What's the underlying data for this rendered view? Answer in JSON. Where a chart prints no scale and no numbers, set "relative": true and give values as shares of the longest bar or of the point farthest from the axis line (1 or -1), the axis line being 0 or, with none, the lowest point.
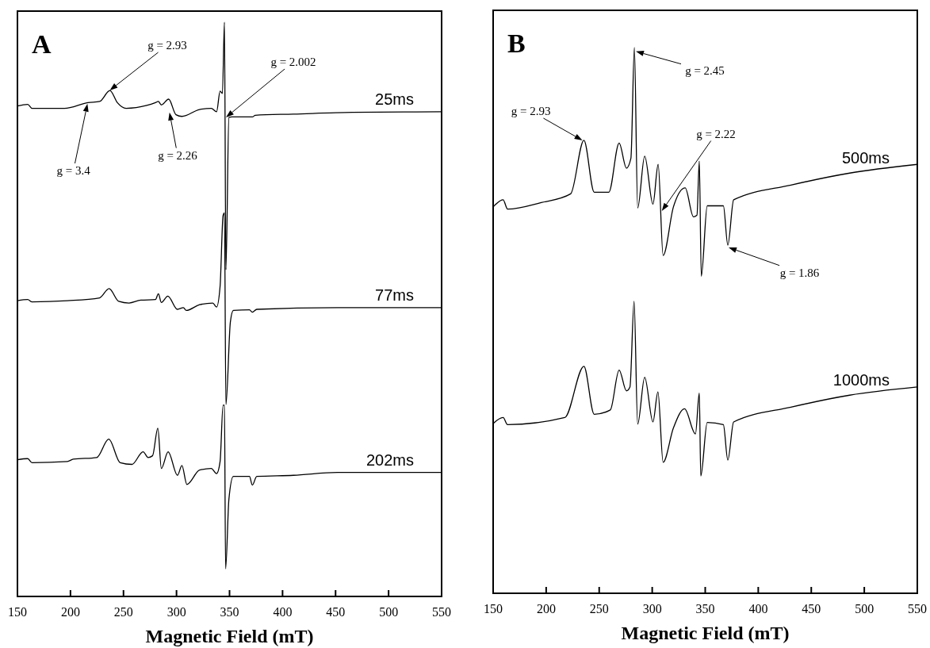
{
  "chart_data": [
    {
      "type": "line",
      "relative": true,
      "xlabel": "Magnetic Field (mT)",
      "xlim": [
        150,
        550
      ],
      "xticks": [
        150,
        200,
        250,
        300,
        350,
        400,
        450,
        500,
        550
      ],
      "annotations": [
        "A",
        "g = 2.93",
        "g = 3.4",
        "g = 2.26",
        "g = 2.002"
      ],
      "series": [
        {
          "name": "25ms",
          "color": "#000000",
          "x": [
            150,
            159.7,
            163.8,
            194.3,
            216.5,
            227.5,
            237.2,
            244.2,
            252.5,
            271.9,
            280.2,
            282.9,
            285.7,
            292.6,
            299.5,
            305.1,
            321.7,
            332.8,
            337.8,
            341.1,
            343.3,
            345.2,
            346.6,
            349.4,
            352.2,
            371.5,
            374.3,
            410.3,
            465.7,
            550
          ],
          "values": [
            0.854,
            0.857,
            0.85,
            0.85,
            0.86,
            0.862,
            0.881,
            0.86,
            0.85,
            0.855,
            0.86,
            0.862,
            0.856,
            0.866,
            0.839,
            0.836,
            0.848,
            0.85,
            0.844,
            0.88,
            0.876,
            1,
            0.569,
            0.834,
            0.835,
            0.835,
            0.838,
            0.84,
            0.843,
            0.844
          ]
        },
        {
          "name": "77ms",
          "color": "#000000",
          "x": [
            150,
            159.7,
            163.8,
            197.1,
            227.5,
            236.4,
            245.5,
            255.2,
            266.3,
            280.2,
            282.9,
            285.7,
            291.8,
            300.9,
            306.5,
            309.2,
            321.7,
            334.2,
            337.8,
            341.1,
            343.9,
            345.2,
            346.6,
            350.8,
            353.6,
            368.8,
            371.5,
            375.7,
            451.8,
            550
          ],
          "values": [
            0.515,
            0.517,
            0.513,
            0.515,
            0.52,
            0.536,
            0.514,
            0.511,
            0.516,
            0.517,
            0.527,
            0.512,
            0.523,
            0.5,
            0.503,
            0.498,
            0.508,
            0.511,
            0.504,
            0.54,
            0.663,
            0.668,
            0.334,
            0.478,
            0.498,
            0.499,
            0.495,
            0.5,
            0.503,
            0.503
          ]
        },
        {
          "name": "202ms",
          "color": "#000000",
          "x": [
            150,
            159.7,
            163.8,
            197.1,
            202.6,
            224.8,
            236.1,
            246.9,
            258,
            268.5,
            273.2,
            277.4,
            282.4,
            285.7,
            292.1,
            300.9,
            305.1,
            309.8,
            321.7,
            332.8,
            337.8,
            341.1,
            343.9,
            345.2,
            346.3,
            349.4,
            353.6,
            368.8,
            371.5,
            375.7,
            410.3,
            451.8,
            550
          ],
          "values": [
            0.238,
            0.24,
            0.233,
            0.235,
            0.239,
            0.242,
            0.274,
            0.233,
            0.23,
            0.252,
            0.242,
            0.245,
            0.293,
            0.223,
            0.252,
            0.211,
            0.228,
            0.195,
            0.22,
            0.223,
            0.214,
            0.235,
            0.333,
            0.333,
            0.048,
            0.169,
            0.209,
            0.209,
            0.194,
            0.209,
            0.211,
            0.216,
            0.216
          ]
        }
      ]
    },
    {
      "type": "line",
      "relative": true,
      "xlabel": "Magnetic Field (mT)",
      "xlim": [
        150,
        550
      ],
      "xticks": [
        150,
        200,
        250,
        300,
        350,
        400,
        450,
        500,
        550
      ],
      "annotations": [
        "B",
        "g = 2.93",
        "g = 2.45",
        "g = 2.22",
        "g = 1.86"
      ],
      "series": [
        {
          "name": "500ms",
          "color": "#000000",
          "x": [
            150,
            159.4,
            163.6,
            195.4,
            223.1,
            235.6,
            245.3,
            259.1,
            268.8,
            275.7,
            279.9,
            283.2,
            286.3,
            292.9,
            300.7,
            305.6,
            310.3,
            320,
            331.1,
            338.9,
            342.2,
            344.4,
            346.3,
            351.9,
            367.1,
            371.3,
            376.8,
            430.8,
            486.2,
            550
          ],
          "values": [
            0.708,
            0.721,
            0.704,
            0.716,
            0.732,
            0.83,
            0.735,
            0.735,
            0.825,
            0.779,
            0.797,
            1,
            0.706,
            0.801,
            0.713,
            0.786,
            0.619,
            0.708,
            0.743,
            0.69,
            0.693,
            0.792,
            0.581,
            0.71,
            0.71,
            0.638,
            0.721,
            0.748,
            0.77,
            0.786
          ]
        },
        {
          "name": "1000ms",
          "color": "#000000",
          "x": [
            150,
            159.4,
            163.6,
            217.6,
            235.6,
            245.3,
            260.5,
            268.8,
            275.7,
            279,
            282.9,
            286.3,
            292.9,
            300.7,
            305.4,
            310.3,
            320,
            330.5,
            340.8,
            344.4,
            345.8,
            351.9,
            367.1,
            371.3,
            376.8,
            430.8,
            486.2,
            550
          ],
          "values": [
            0.311,
            0.322,
            0.309,
            0.322,
            0.416,
            0.328,
            0.336,
            0.409,
            0.371,
            0.378,
            0.535,
            0.31,
            0.396,
            0.314,
            0.369,
            0.24,
            0.303,
            0.338,
            0.292,
            0.367,
            0.215,
            0.313,
            0.309,
            0.244,
            0.314,
            0.341,
            0.363,
            0.378
          ]
        }
      ]
    }
  ]
}
